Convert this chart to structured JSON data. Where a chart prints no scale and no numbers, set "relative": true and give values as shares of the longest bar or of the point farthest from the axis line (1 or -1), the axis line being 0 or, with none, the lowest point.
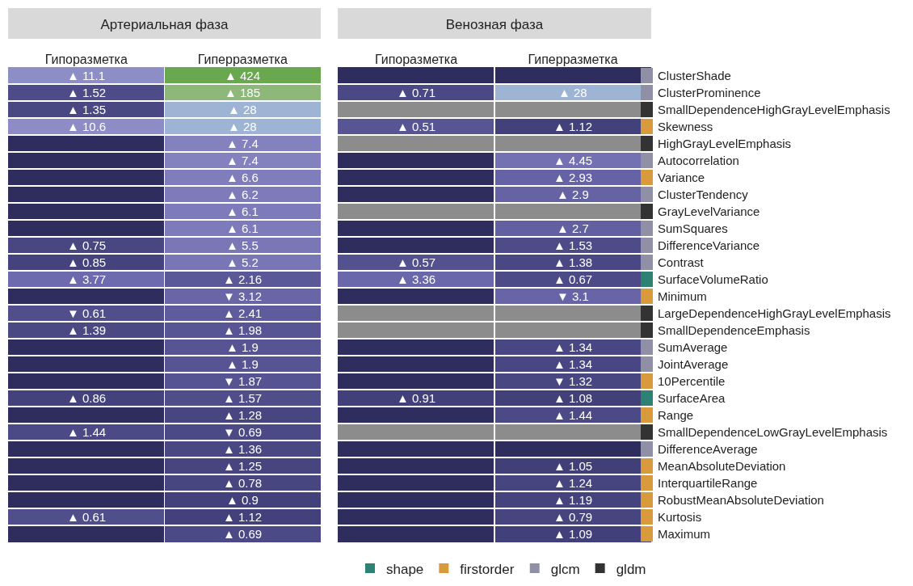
{
  "chart_data": [
    {
      "type": "heatmap",
      "title": "Артериальная фаза",
      "categories": [
        "Гипоразметка",
        "Гиперразметка"
      ],
      "tick_labels": "x",
      "y_categories": [
        null,
        null,
        null,
        null,
        null,
        null,
        null,
        null,
        null,
        null,
        null,
        null,
        null,
        null,
        null,
        null,
        null,
        null,
        null,
        null,
        null,
        null,
        null,
        null,
        null,
        null,
        null,
        null
      ],
      "cells": [
        [
          11.1,
          424
        ],
        [
          1.52,
          185
        ],
        [
          1.35,
          28
        ],
        [
          10.6,
          28
        ],
        [
          null,
          7.4
        ],
        [
          null,
          7.4
        ],
        [
          null,
          6.6
        ],
        [
          null,
          6.2
        ],
        [
          null,
          6.1
        ],
        [
          null,
          6.1
        ],
        [
          0.75,
          5.5
        ],
        [
          0.85,
          5.2
        ],
        [
          3.77,
          2.16
        ],
        [
          null,
          3.12
        ],
        [
          0.61,
          2.41
        ],
        [
          1.39,
          1.98
        ],
        [
          null,
          1.9
        ],
        [
          null,
          1.9
        ],
        [
          null,
          1.87
        ],
        [
          0.86,
          1.57
        ],
        [
          null,
          1.28
        ],
        [
          1.44,
          0.69
        ],
        [
          null,
          1.36
        ],
        [
          null,
          1.25
        ],
        [
          null,
          0.78
        ],
        [
          null,
          0.9
        ],
        [
          0.61,
          1.12
        ],
        [
          null,
          0.69
        ]
      ],
      "cell_labels": [
        [
          "▲ 11.1",
          "▲ 424"
        ],
        [
          "▲ 1.52",
          "▲ 185"
        ],
        [
          "▲ 1.35",
          "▲ 28"
        ],
        [
          "▲ 10.6",
          "▲ 28"
        ],
        [
          null,
          "▲ 7.4"
        ],
        [
          null,
          "▲ 7.4"
        ],
        [
          null,
          "▲ 6.6"
        ],
        [
          null,
          "▲ 6.2"
        ],
        [
          null,
          "▲ 6.1"
        ],
        [
          null,
          "▲ 6.1"
        ],
        [
          "▲ 0.75",
          "▲ 5.5"
        ],
        [
          "▲ 0.85",
          "▲ 5.2"
        ],
        [
          "▲ 3.77",
          "▲ 2.16"
        ],
        [
          null,
          "▼ 3.12"
        ],
        [
          "▼ 0.61",
          "▲ 2.41"
        ],
        [
          "▲ 1.39",
          "▲ 1.98"
        ],
        [
          null,
          "▲ 1.9"
        ],
        [
          null,
          "▲ 1.9"
        ],
        [
          null,
          "▼ 1.87"
        ],
        [
          "▲ 0.86",
          "▲ 1.57"
        ],
        [
          null,
          "▲ 1.28"
        ],
        [
          "▲ 1.44",
          "▼ 0.69"
        ],
        [
          null,
          "▲ 1.36"
        ],
        [
          null,
          "▲ 1.25"
        ],
        [
          null,
          "▲ 0.78"
        ],
        [
          null,
          "▲ 0.9"
        ],
        [
          "▲ 0.61",
          "▲ 1.12"
        ],
        [
          null,
          "▲ 0.69"
        ]
      ]
    },
    {
      "type": "heatmap",
      "title": "Венозная фаза",
      "categories": [
        "Гипоразметка",
        "Гиперразметка"
      ],
      "y_categories": [
        "ClusterShade",
        "ClusterProminence",
        "SmallDependenceHighGrayLevelEmphasis",
        "Skewness",
        "HighGrayLevelEmphasis",
        "Autocorrelation",
        "Variance",
        "ClusterTendency",
        "GrayLevelVariance",
        "SumSquares",
        "DifferenceVariance",
        "Contrast",
        "SurfaceVolumeRatio",
        "Minimum",
        "LargeDependenceHighGrayLevelEmphasis",
        "SmallDependenceEmphasis",
        "SumAverage",
        "JointAverage",
        "10Percentile",
        "SurfaceArea",
        "Range",
        "SmallDependenceLowGrayLevelEmphasis",
        "DifferenceAverage",
        "MeanAbsoluteDeviation",
        "InterquartileRange",
        "RobustMeanAbsoluteDeviation",
        "Kurtosis",
        "Maximum"
      ],
      "cells": [
        [
          null,
          null
        ],
        [
          0.71,
          28
        ],
        [
          null,
          null
        ],
        [
          0.51,
          1.12
        ],
        [
          null,
          null
        ],
        [
          null,
          4.45
        ],
        [
          null,
          2.93
        ],
        [
          null,
          2.9
        ],
        [
          null,
          null
        ],
        [
          null,
          2.7
        ],
        [
          null,
          1.53
        ],
        [
          0.57,
          1.38
        ],
        [
          3.36,
          0.67
        ],
        [
          null,
          3.1
        ],
        [
          null,
          null
        ],
        [
          null,
          null
        ],
        [
          null,
          1.34
        ],
        [
          null,
          1.34
        ],
        [
          null,
          1.32
        ],
        [
          0.91,
          1.08
        ],
        [
          null,
          1.44
        ],
        [
          null,
          null
        ],
        [
          null,
          null
        ],
        [
          null,
          1.05
        ],
        [
          null,
          1.24
        ],
        [
          null,
          1.19
        ],
        [
          null,
          0.79
        ],
        [
          null,
          1.09
        ]
      ],
      "cell_labels": [
        [
          null,
          null
        ],
        [
          "▲ 0.71",
          "▲ 28"
        ],
        [
          null,
          null
        ],
        [
          "▲ 0.51",
          "▲ 1.12"
        ],
        [
          null,
          null
        ],
        [
          null,
          "▲ 4.45"
        ],
        [
          null,
          "▲ 2.93"
        ],
        [
          null,
          "▲ 2.9"
        ],
        [
          null,
          null
        ],
        [
          null,
          "▲ 2.7"
        ],
        [
          null,
          "▲ 1.53"
        ],
        [
          "▲ 0.57",
          "▲ 1.38"
        ],
        [
          "▲ 3.36",
          "▲ 0.67"
        ],
        [
          null,
          "▼ 3.1"
        ],
        [
          null,
          null
        ],
        [
          null,
          null
        ],
        [
          null,
          "▲ 1.34"
        ],
        [
          null,
          "▲ 1.34"
        ],
        [
          null,
          "▼ 1.32"
        ],
        [
          "▲ 0.91",
          "▲ 1.08"
        ],
        [
          null,
          "▲ 1.44"
        ],
        [
          null,
          null
        ],
        [
          null,
          null
        ],
        [
          null,
          "▲ 1.05"
        ],
        [
          null,
          "▲ 1.24"
        ],
        [
          null,
          "▲ 1.19"
        ],
        [
          null,
          "▲ 0.79"
        ],
        [
          null,
          "▲ 1.09"
        ]
      ],
      "bands": [
        {
          "axis": "y",
          "from": "SmallDependenceHighGrayLevelEmphasis",
          "to": "SmallDependenceHighGrayLevelEmphasis",
          "color": "#8c8c8c"
        },
        {
          "axis": "y",
          "from": "HighGrayLevelEmphasis",
          "to": "HighGrayLevelEmphasis",
          "color": "#8c8c8c"
        },
        {
          "axis": "y",
          "from": "GrayLevelVariance",
          "to": "GrayLevelVariance",
          "color": "#8c8c8c"
        },
        {
          "axis": "y",
          "from": "LargeDependenceHighGrayLevelEmphasis",
          "to": "SmallDependenceEmphasis",
          "color": "#8c8c8c"
        },
        {
          "axis": "y",
          "from": "SmallDependenceLowGrayLevelEmphasis",
          "to": "SmallDependenceLowGrayLevelEmphasis",
          "color": "#8c8c8c"
        }
      ]
    },
    {
      "type": "bar",
      "orientation": "horizontal",
      "stacked": true,
      "relative": true,
      "legend": "bottom",
      "tick_labels": false,
      "categories": [
        null,
        null,
        null,
        null,
        null,
        null,
        null,
        null,
        null,
        null,
        null,
        null,
        null,
        null,
        null,
        null,
        null,
        null,
        null,
        null,
        null,
        null,
        null,
        null,
        null,
        null,
        null,
        null
      ],
      "series": [
        {
          "name": "shape",
          "color": "#2e8273",
          "values": [
            null,
            null,
            null,
            null,
            null,
            null,
            null,
            null,
            null,
            null,
            null,
            null,
            1,
            null,
            null,
            null,
            null,
            null,
            null,
            1,
            null,
            null,
            null,
            null,
            null,
            null,
            null,
            null
          ]
        },
        {
          "name": "firstorder",
          "color": "#d99a3c",
          "values": [
            null,
            null,
            null,
            1,
            null,
            null,
            1,
            null,
            null,
            null,
            null,
            null,
            null,
            1,
            null,
            null,
            null,
            null,
            1,
            null,
            1,
            null,
            null,
            1,
            1,
            1,
            1,
            1
          ]
        },
        {
          "name": "glcm",
          "color": "#8f8fa6",
          "values": [
            1,
            1,
            null,
            null,
            null,
            1,
            null,
            1,
            null,
            1,
            1,
            1,
            null,
            null,
            null,
            null,
            1,
            1,
            null,
            null,
            null,
            null,
            1,
            null,
            null,
            null,
            null,
            null
          ]
        },
        {
          "name": "gldm",
          "color": "#333333",
          "values": [
            null,
            null,
            1,
            null,
            1,
            null,
            null,
            null,
            1,
            null,
            null,
            null,
            null,
            null,
            1,
            1,
            null,
            null,
            null,
            null,
            null,
            1,
            null,
            null,
            null,
            null,
            null,
            null
          ]
        }
      ]
    }
  ]
}
